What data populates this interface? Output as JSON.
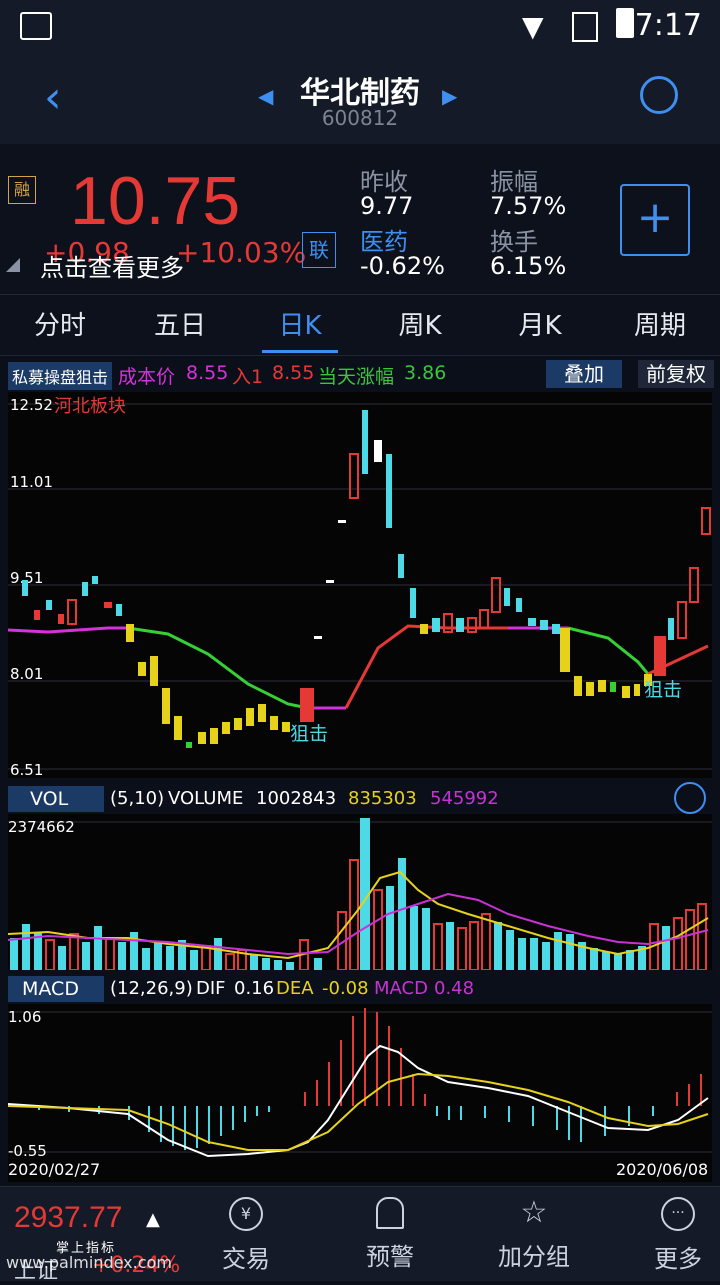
{
  "status": {
    "time": "7:17"
  },
  "header": {
    "name": "华北制药",
    "code": "600812"
  },
  "quote": {
    "price": "10.75",
    "change": "+0.98",
    "change_pct": "+10.03%",
    "rong": "融",
    "lian": "联",
    "tip": "点击查看更多",
    "prev_close_label": "昨收",
    "prev_close": "9.77",
    "sector_label": "医药",
    "sector_change": "-0.62%",
    "amplitude_label": "振幅",
    "amplitude": "7.57%",
    "turnover_label": "换手",
    "turnover": "6.15%"
  },
  "tabs": [
    "分时",
    "五日",
    "日K",
    "周K",
    "月K",
    "周期"
  ],
  "active_tab": "日K",
  "kline_header": {
    "strategy": "私募操盘狙击",
    "cost_label": "成本价",
    "cost": "8.55",
    "entry_label": "入1",
    "entry": "8.55",
    "rise_label": "当天涨幅",
    "rise": "3.86",
    "overlay": "叠加",
    "adjust": "前复权",
    "sector_tag": "河北板块"
  },
  "kline_axis": [
    "12.52",
    "11.01",
    "9.51",
    "8.01",
    "6.51"
  ],
  "snipe_label": "狙击",
  "vol_header": {
    "name": "VOL",
    "params": "(5,10)",
    "volume_label": "VOLUME",
    "volume": "1002843",
    "ma5": "835303",
    "ma10": "545992",
    "axis_max": "2374662"
  },
  "macd_header": {
    "name": "MACD",
    "params": "(12,26,9)",
    "dif_label": "DIF",
    "dif": "0.16",
    "dea_label": "DEA",
    "dea": "-0.08",
    "macd_label": "MACD",
    "macd": "0.48",
    "axis_top": "1.06",
    "axis_bottom": "-0.55"
  },
  "dates": {
    "start": "2020/02/27",
    "end": "2020/06/08"
  },
  "bottom_nav": {
    "index_value": "2937.77",
    "index_name": "上证",
    "index_change": "+0.24%",
    "items": [
      "交易",
      "预警",
      "加分组",
      "更多"
    ],
    "ad_text": "掌上指标",
    "watermark": "www.palmindex.com"
  },
  "colors": {
    "up": "#e53935",
    "down": "#4dd9e6",
    "ma5": "#e6d21a",
    "ma10": "#c832d4",
    "accent": "#3e8ff0"
  }
}
